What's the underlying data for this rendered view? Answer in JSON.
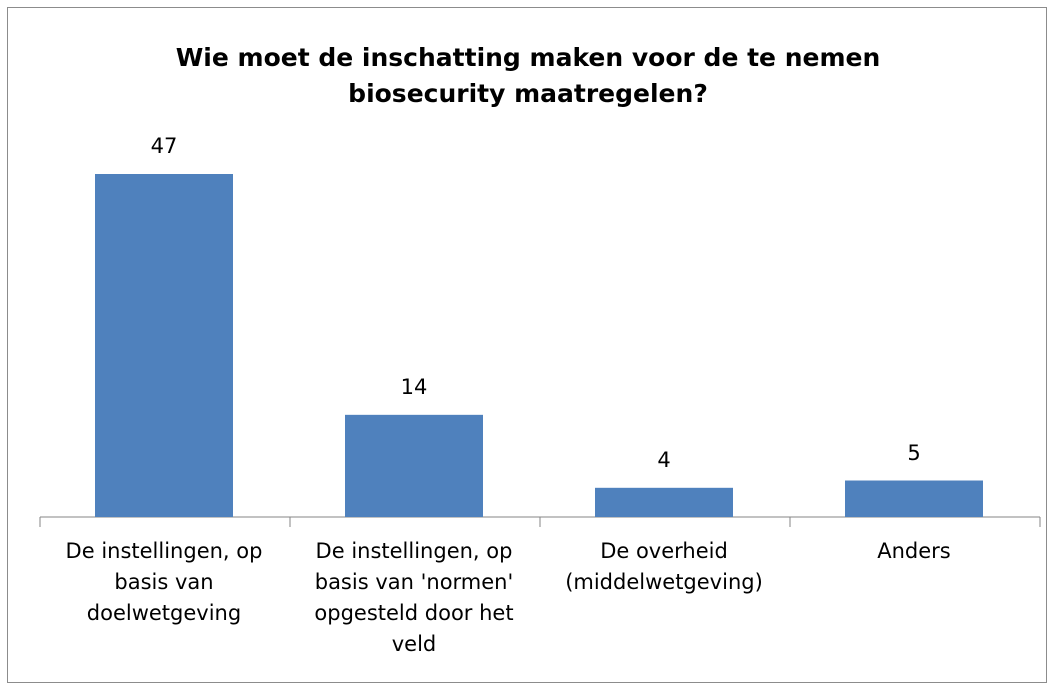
{
  "chart_data": {
    "type": "bar",
    "title": "Wie moet de inschatting maken voor de te nemen biosecurity maatregelen?",
    "categories": [
      "De instellingen, op basis van doelwetgeving",
      "De instellingen, op basis van 'normen' opgesteld door het veld",
      "De overheid (middelwetgeving)",
      "Anders"
    ],
    "values": [
      47,
      14,
      4,
      5
    ],
    "color": "#4f81bd"
  }
}
